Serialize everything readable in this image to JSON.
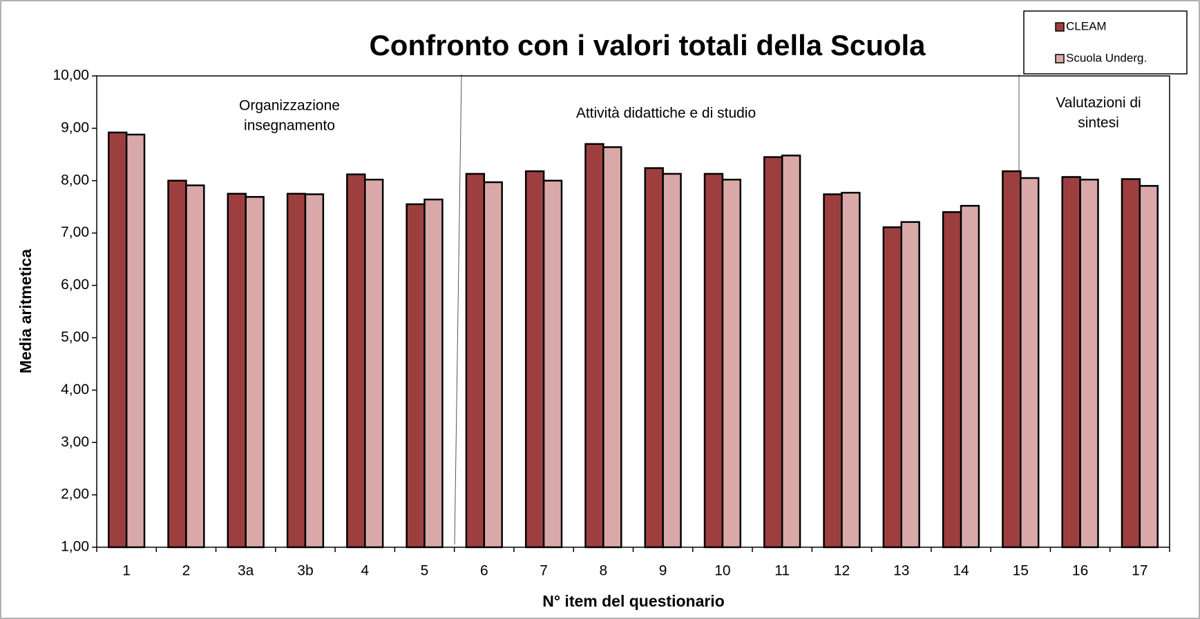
{
  "chart_data": {
    "type": "bar",
    "title": "Confronto con i valori totali della Scuola",
    "x_label": "N° item del questionario",
    "y_label": "Media aritmetica",
    "categories": [
      "1",
      "2",
      "3a",
      "3b",
      "4",
      "5",
      "6",
      "7",
      "8",
      "9",
      "10",
      "11",
      "12",
      "13",
      "14",
      "15",
      "16",
      "17"
    ],
    "series": [
      {
        "name": "CLEAM",
        "color": "#9e3f3f",
        "values": [
          8.92,
          8.0,
          7.75,
          7.75,
          8.12,
          7.55,
          8.13,
          8.18,
          8.7,
          8.24,
          8.13,
          8.45,
          7.74,
          7.11,
          7.4,
          8.18,
          8.07,
          8.03
        ]
      },
      {
        "name": "Scuola Underg.",
        "color": "#d9a9a9",
        "values": [
          8.88,
          7.91,
          7.69,
          7.74,
          8.02,
          7.64,
          7.97,
          8.0,
          8.64,
          8.13,
          8.02,
          8.48,
          7.77,
          7.21,
          7.52,
          8.05,
          8.02,
          7.9
        ]
      }
    ],
    "ylim": [
      1,
      10
    ],
    "yticks": [
      {
        "value": 1,
        "label": "1,00"
      },
      {
        "value": 2,
        "label": "2,00"
      },
      {
        "value": 3,
        "label": "3,00"
      },
      {
        "value": 4,
        "label": "4,00"
      },
      {
        "value": 5,
        "label": "5,00"
      },
      {
        "value": 6,
        "label": "6,00"
      },
      {
        "value": 7,
        "label": "7,00"
      },
      {
        "value": 8,
        "label": "8,00"
      },
      {
        "value": 9,
        "label": "9,00"
      },
      {
        "value": 10,
        "label": "10,00"
      }
    ],
    "annotations": [
      [
        "Organizzazione",
        "insegnamento"
      ],
      [
        "Attività didattiche e di studio"
      ],
      [
        "Valutazioni di",
        "sintesi"
      ]
    ],
    "legend": "top-right"
  }
}
